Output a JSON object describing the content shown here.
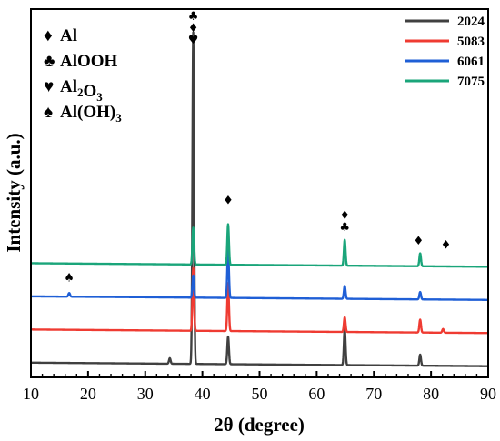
{
  "chart_data": {
    "type": "line",
    "xlabel": "2θ (degree)",
    "ylabel": "Intensity (a.u.)",
    "xlim": [
      10,
      90
    ],
    "xticks": [
      "10",
      "20",
      "30",
      "40",
      "50",
      "60",
      "70",
      "80",
      "90"
    ],
    "ylim": [
      0,
      100
    ],
    "grid": false,
    "legend_position": "top-right",
    "series": [
      {
        "name": "2024",
        "color": "#404040",
        "baseline": 4,
        "peaks": [
          [
            34.3,
            1.5
          ],
          [
            38.4,
            90
          ],
          [
            44.5,
            7.5
          ],
          [
            64.9,
            10
          ],
          [
            78.1,
            3
          ]
        ]
      },
      {
        "name": "5083",
        "color": "#ef3b32",
        "baseline": 13,
        "peaks": [
          [
            38.4,
            17
          ],
          [
            44.5,
            13
          ],
          [
            64.9,
            4
          ],
          [
            78.1,
            3.5
          ],
          [
            82.1,
            1
          ]
        ]
      },
      {
        "name": "6061",
        "color": "#1f5fd6",
        "baseline": 22,
        "peaks": [
          [
            16.7,
            1
          ],
          [
            38.4,
            6
          ],
          [
            44.5,
            13
          ],
          [
            64.9,
            3.5
          ],
          [
            78.1,
            2
          ]
        ]
      },
      {
        "name": "7075",
        "color": "#1aa57a",
        "baseline": 31,
        "peaks": [
          [
            38.4,
            10
          ],
          [
            44.5,
            11
          ],
          [
            64.9,
            7
          ],
          [
            78.1,
            3.5
          ]
        ]
      }
    ],
    "phase_legend": [
      {
        "symbol": "♦",
        "base": "Al",
        "sub": "",
        "rest": "",
        "sub2": ""
      },
      {
        "symbol": "♣",
        "base": "AlOOH",
        "sub": "",
        "rest": "",
        "sub2": ""
      },
      {
        "symbol": "♥",
        "base": "Al",
        "sub": "2",
        "rest": "O",
        "sub2": "3"
      },
      {
        "symbol": "♠",
        "base": "Al(OH)",
        "sub": "3",
        "rest": "",
        "sub2": ""
      }
    ],
    "peak_markers": [
      {
        "x": 16.7,
        "y": 26,
        "symbols": [
          "♠"
        ]
      },
      {
        "x": 38.4,
        "y": 97,
        "symbols": [
          "♣",
          "♦",
          "♥"
        ]
      },
      {
        "x": 44.5,
        "y": 47,
        "symbols": [
          "♦"
        ]
      },
      {
        "x": 64.9,
        "y": 43,
        "symbols": [
          "♦",
          "♣"
        ]
      },
      {
        "x": 77.8,
        "y": 36,
        "symbols": [
          "♦"
        ]
      },
      {
        "x": 82.6,
        "y": 35,
        "symbols": [
          "♦"
        ]
      }
    ]
  }
}
